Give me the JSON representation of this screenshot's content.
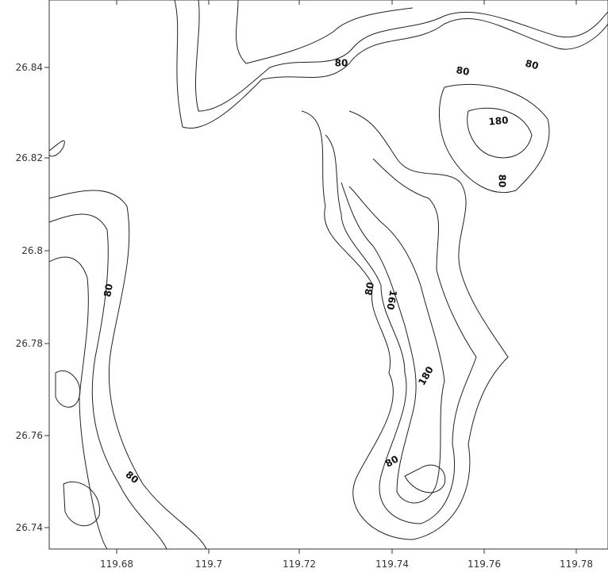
{
  "map": {
    "x_ticks": [
      "119.68",
      "119.7",
      "119.72",
      "119.74",
      "119.76",
      "119.78"
    ],
    "y_ticks": [
      "26.84",
      "26.82",
      "26.8",
      "26.78",
      "26.76",
      "26.74"
    ],
    "contour_labels": [
      "80",
      "80",
      "80",
      "180",
      "80",
      "80",
      "80",
      "160",
      "180",
      "80",
      "80"
    ]
  }
}
